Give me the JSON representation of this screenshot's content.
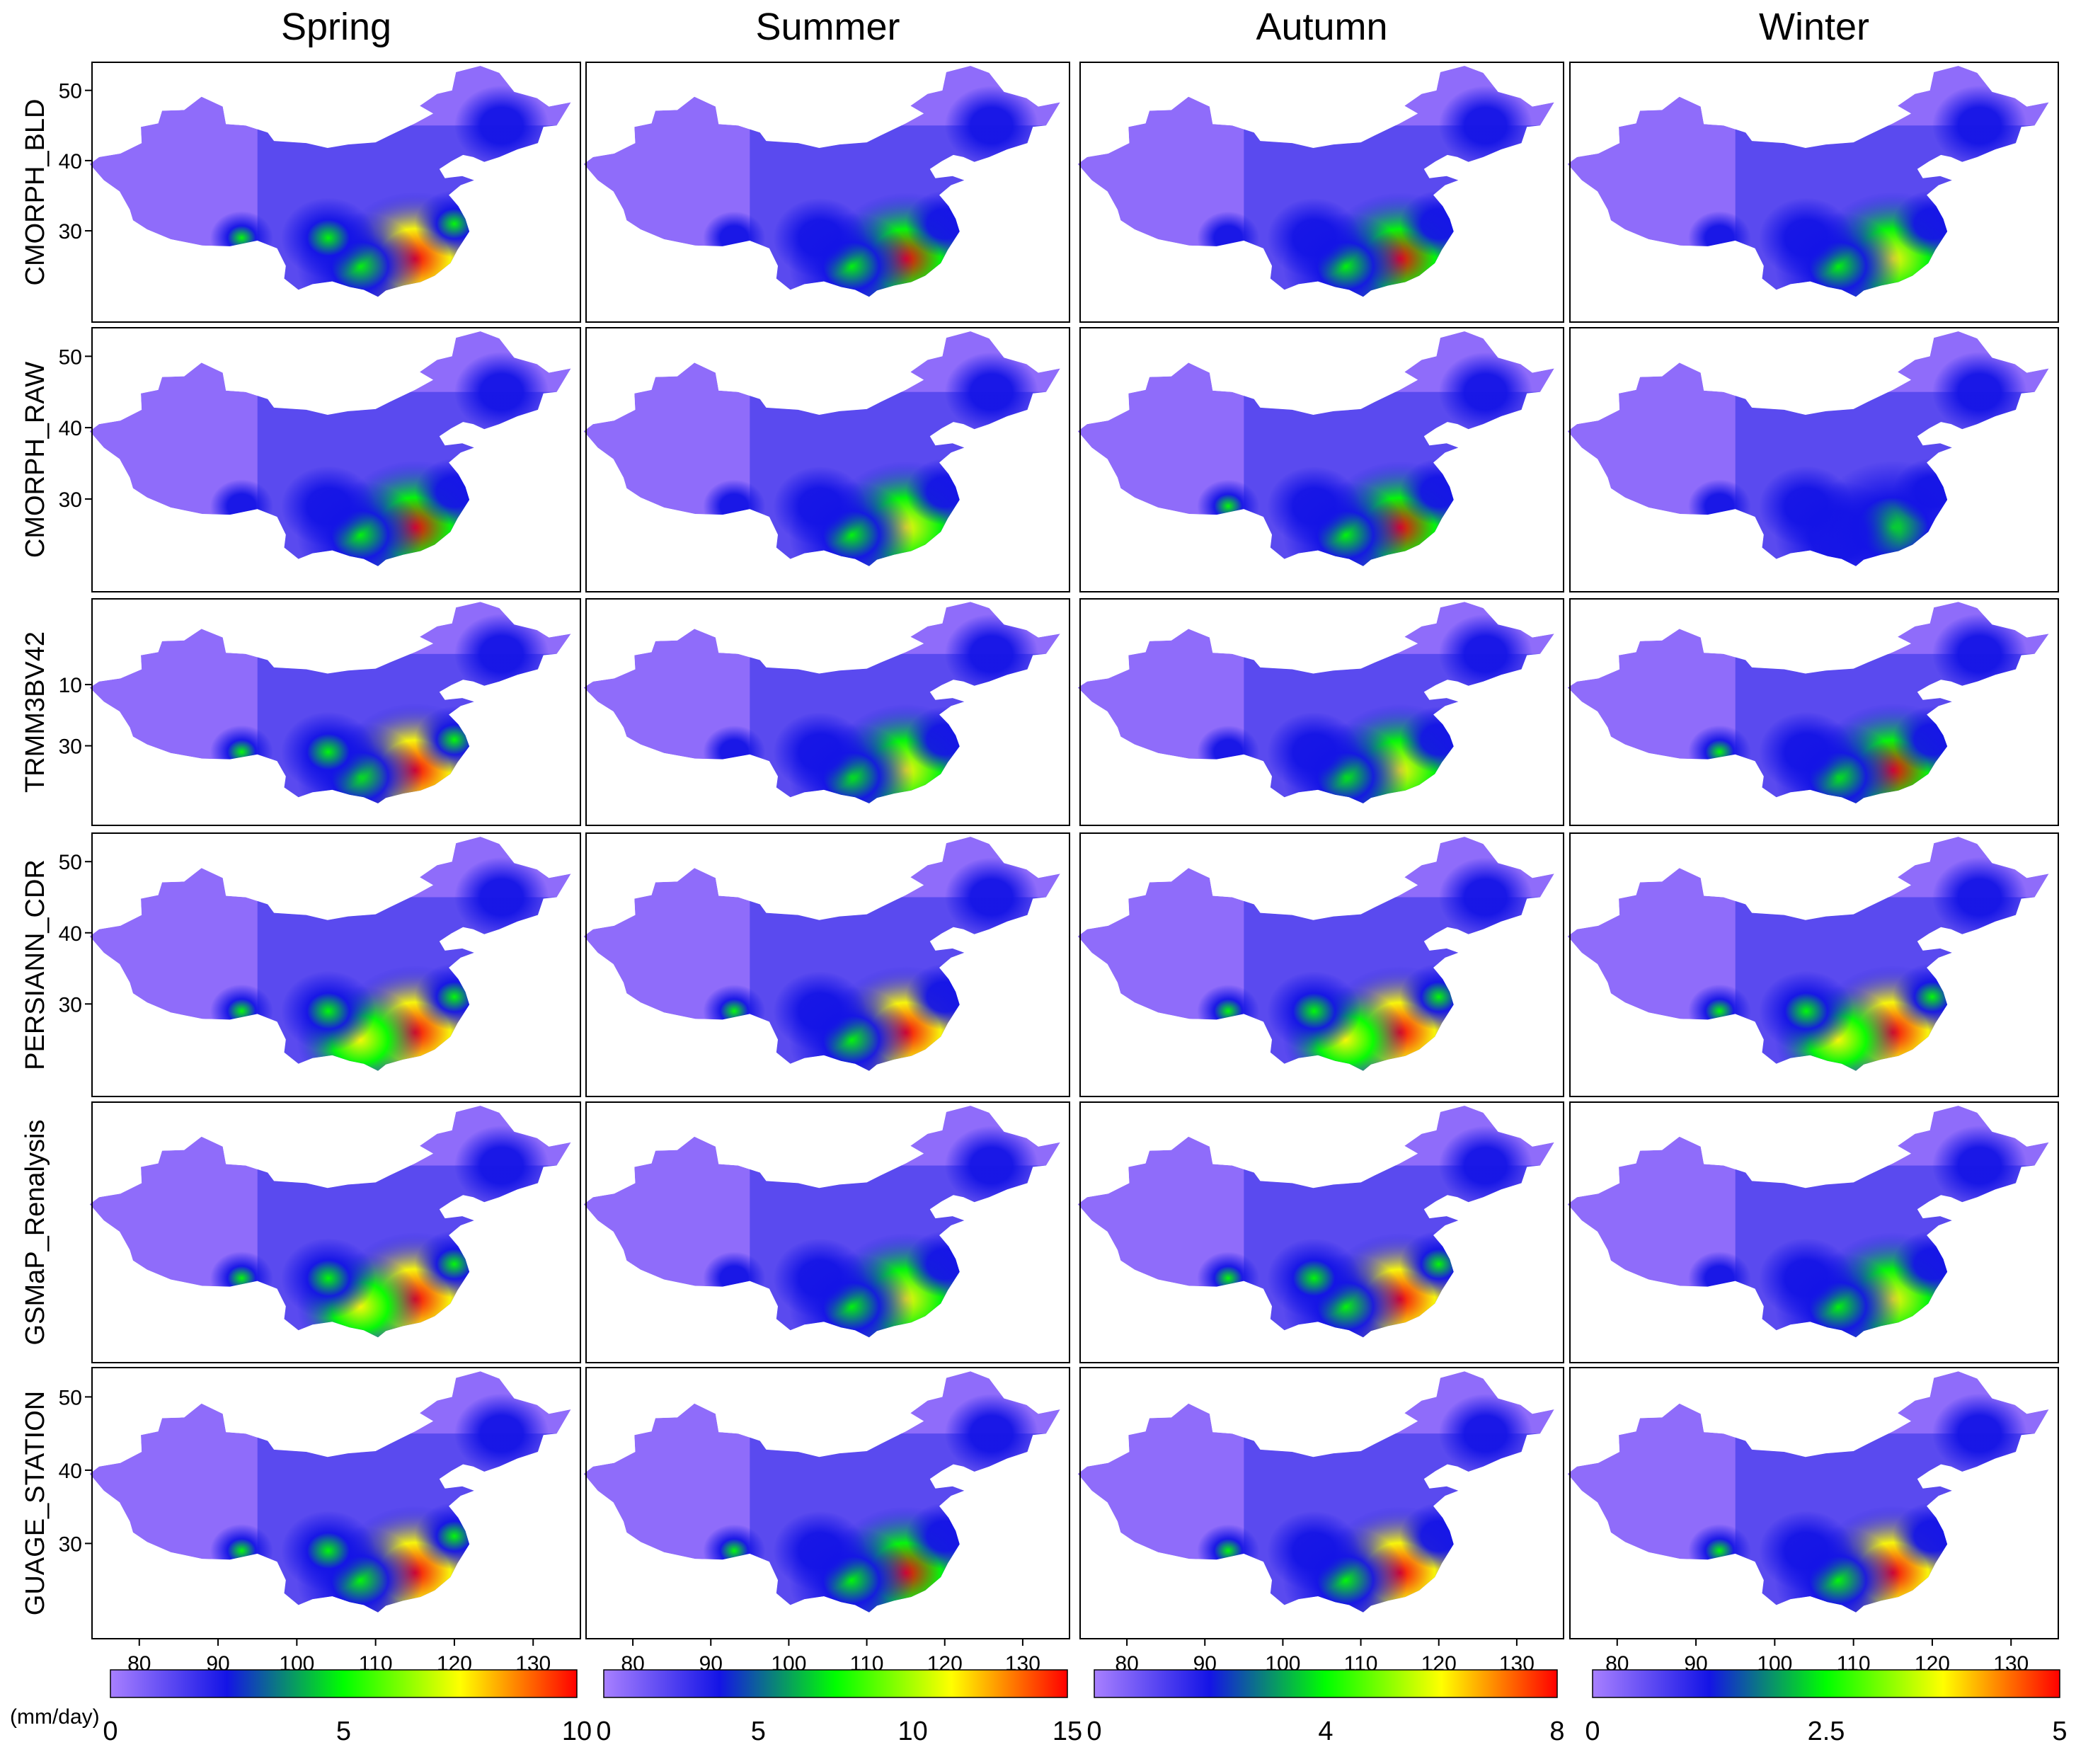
{
  "figure": {
    "column_titles": [
      "Spring",
      "Summer",
      "Autumn",
      "Winter"
    ],
    "row_labels": [
      "CMORPH_BLD",
      "CMORPH_RAW",
      "TRMM3BV42",
      "PERSIANN_CDR",
      "GSMaP_Renalysis",
      "GUAGE_STATION"
    ],
    "unit_label": "(mm/day)"
  },
  "chart_data": {
    "type": "heatmap",
    "title": "",
    "x_axis": {
      "ticks": [
        80,
        90,
        100,
        110,
        120,
        130
      ],
      "range": [
        74,
        136
      ]
    },
    "y_axis": {
      "ticks": [
        30,
        40,
        50
      ],
      "range": [
        17,
        54
      ]
    },
    "y_ticks_shown_per_row": [
      [
        "30",
        "40",
        "50"
      ],
      [
        "30",
        "40",
        "50"
      ],
      [
        "30",
        "10"
      ],
      [
        "30",
        "40",
        "50"
      ],
      [],
      [
        "30",
        "40",
        "50"
      ]
    ],
    "colormap": [
      "#a880ff",
      "#1414e6",
      "#00ff00",
      "#ffff00",
      "#ff0000"
    ],
    "colorbars": [
      {
        "season": "Spring",
        "min": 0,
        "max": 10,
        "tick_labels": [
          "0",
          "5",
          "10"
        ]
      },
      {
        "season": "Summer",
        "min": 0,
        "max": 15,
        "tick_labels": [
          "0",
          "5",
          "10",
          "15"
        ]
      },
      {
        "season": "Autumn",
        "min": 0,
        "max": 8,
        "tick_labels": [
          "0",
          "4",
          "8"
        ]
      },
      {
        "season": "Winter",
        "min": 0,
        "max": 5,
        "tick_labels": [
          "0",
          "2.5",
          "5"
        ]
      }
    ],
    "seasonal_intensity": {
      "rows": [
        "CMORPH_BLD",
        "CMORPH_RAW",
        "TRMM3BV42",
        "PERSIANN_CDR",
        "GSMaP_Renalysis",
        "GUAGE_STATION"
      ],
      "columns": [
        "Spring",
        "Summer",
        "Autumn",
        "Winter"
      ],
      "southeast_peak_fraction": [
        [
          0.9,
          0.7,
          0.7,
          0.65
        ],
        [
          0.7,
          0.55,
          0.75,
          0.45
        ],
        [
          0.9,
          0.65,
          0.65,
          0.75
        ],
        [
          0.95,
          0.8,
          1.0,
          1.0
        ],
        [
          0.95,
          0.6,
          0.85,
          0.65
        ],
        [
          0.85,
          0.75,
          0.8,
          0.8
        ]
      ]
    }
  }
}
